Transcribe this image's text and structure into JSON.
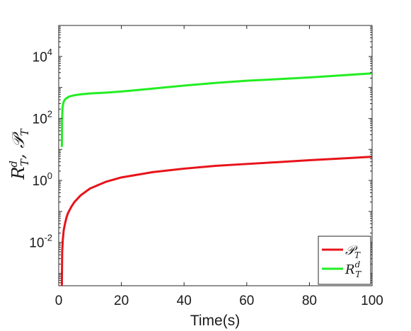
{
  "chart_data": {
    "type": "line",
    "xlabel": "Time(s)",
    "ylabel": "R_T^d, P_T",
    "x_ticks": [
      0,
      20,
      40,
      60,
      80,
      100
    ],
    "y_ticks": [
      {
        "base": "10",
        "exp": "-2"
      },
      {
        "base": "10",
        "exp": "0"
      },
      {
        "base": "10",
        "exp": "2"
      },
      {
        "base": "10",
        "exp": "4"
      }
    ],
    "xlim": [
      0,
      100
    ],
    "ylim": [
      0.0004,
      100000
    ],
    "yscale": "log",
    "grid": false,
    "legend_position": "bottom-right",
    "series": [
      {
        "name": "P_T",
        "color": "#e8131a",
        "x": [
          1.0,
          1.1,
          1.3,
          1.6,
          2,
          2.5,
          3,
          4,
          5,
          7,
          10,
          15,
          20,
          30,
          40,
          50,
          60,
          70,
          80,
          90,
          100
        ],
        "y": [
          0.0004,
          0.005,
          0.012,
          0.025,
          0.04,
          0.065,
          0.09,
          0.14,
          0.2,
          0.33,
          0.55,
          0.9,
          1.25,
          1.85,
          2.4,
          2.95,
          3.4,
          3.9,
          4.5,
          5.1,
          5.8
        ]
      },
      {
        "name": "R_T^d",
        "color": "#22ee22",
        "x": [
          1.0,
          1.05,
          1.2,
          1.5,
          2,
          3,
          4,
          5,
          7,
          10,
          15,
          20,
          25,
          30,
          40,
          50,
          60,
          70,
          80,
          90,
          100
        ],
        "y": [
          12,
          80,
          220,
          330,
          410,
          490,
          530,
          560,
          600,
          640,
          680,
          740,
          820,
          920,
          1150,
          1400,
          1650,
          1850,
          2100,
          2450,
          2850
        ]
      }
    ],
    "legend": [
      {
        "main": "P",
        "sub": "T",
        "sup": ""
      },
      {
        "main": "R",
        "sub": "T",
        "sup": "d"
      }
    ]
  }
}
